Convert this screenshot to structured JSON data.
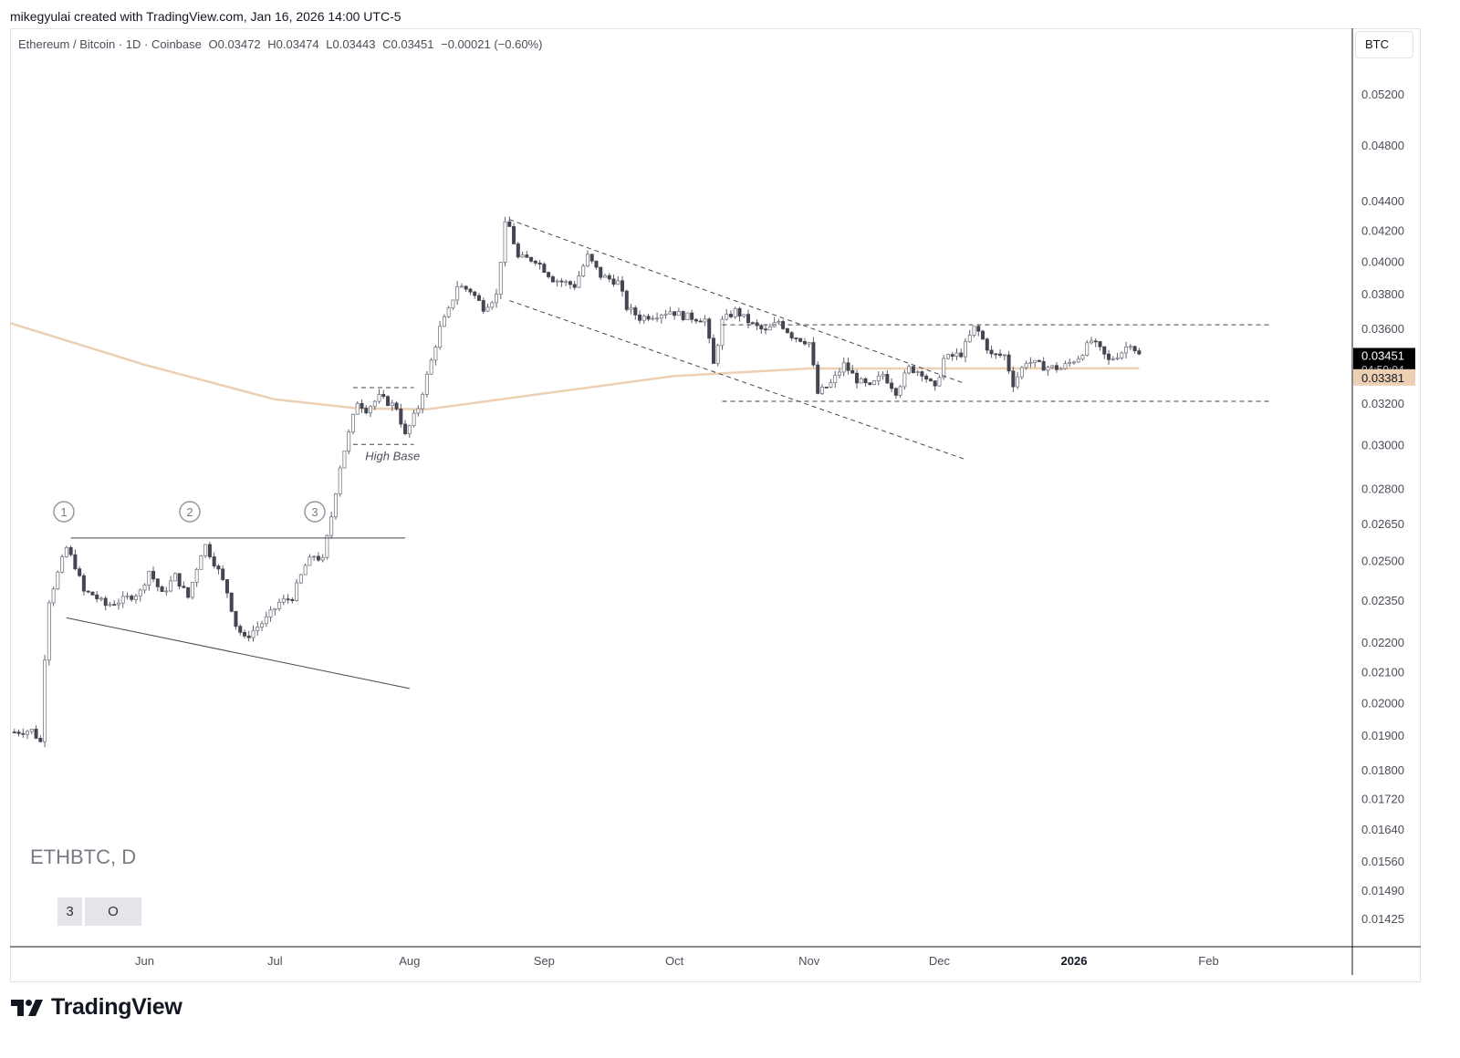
{
  "attribution": "mikegyulai created with TradingView.com, Jan 16, 2026 14:00 UTC-5",
  "legend": {
    "symbol": "Ethereum / Bitcoin · 1D · Coinbase",
    "open": "O0.03472",
    "high": "H0.03474",
    "low": "L0.03443",
    "close": "C0.03451",
    "change": "−0.00021 (−0.60%)"
  },
  "price_scale_label": "BTC",
  "watermark": {
    "title": "ETHBTC, D",
    "box1": "3",
    "box2": "O"
  },
  "logo_text": "TradingView",
  "colors": {
    "up_candle": "#ffffff",
    "up_border": "#787b86",
    "down_candle": "#434651",
    "ma_line": "#edcfb4",
    "last_price_bg": "#000000",
    "ma_badge_bg": "#edcfb4"
  },
  "chart_data": {
    "type": "candlestick",
    "title": "",
    "scale": "log",
    "ylim": [
      0.01395,
      0.0536
    ],
    "y_ticks": [
      "0.05200",
      "0.04800",
      "0.04400",
      "0.04200",
      "0.04000",
      "0.03800",
      "0.03600",
      "0.03200",
      "0.03000",
      "0.02800",
      "0.02650",
      "0.02500",
      "0.02350",
      "0.02200",
      "0.02100",
      "0.02000",
      "0.01900",
      "0.01800",
      "0.01720",
      "0.01640",
      "0.01560",
      "0.01490",
      "0.01425"
    ],
    "x_ticks": [
      {
        "label": "Jun",
        "date": "2025-06-01",
        "bold": false
      },
      {
        "label": "Jul",
        "date": "2025-07-01",
        "bold": false
      },
      {
        "label": "Aug",
        "date": "2025-08-01",
        "bold": false
      },
      {
        "label": "Sep",
        "date": "2025-09-01",
        "bold": false
      },
      {
        "label": "Oct",
        "date": "2025-10-01",
        "bold": false
      },
      {
        "label": "Nov",
        "date": "2025-11-01",
        "bold": false
      },
      {
        "label": "Dec",
        "date": "2025-12-01",
        "bold": false
      },
      {
        "label": "2026",
        "date": "2026-01-01",
        "bold": true
      },
      {
        "label": "Feb",
        "date": "2026-02-01",
        "bold": false
      }
    ],
    "close_path": [
      [
        "2025-05-02",
        0.0191
      ],
      [
        "2025-05-06",
        0.01915
      ],
      [
        "2025-05-08",
        0.0188
      ],
      [
        "2025-05-09",
        0.0215
      ],
      [
        "2025-05-10",
        0.0235
      ],
      [
        "2025-05-12",
        0.0245
      ],
      [
        "2025-05-14",
        0.0255
      ],
      [
        "2025-05-16",
        0.0248
      ],
      [
        "2025-05-18",
        0.0238
      ],
      [
        "2025-05-20",
        0.0237
      ],
      [
        "2025-05-23",
        0.0233
      ],
      [
        "2025-05-27",
        0.0235
      ],
      [
        "2025-05-31",
        0.0238
      ],
      [
        "2025-06-02",
        0.0246
      ],
      [
        "2025-06-05",
        0.0237
      ],
      [
        "2025-06-08",
        0.0244
      ],
      [
        "2025-06-11",
        0.0236
      ],
      [
        "2025-06-14",
        0.0253
      ],
      [
        "2025-06-15",
        0.0256
      ],
      [
        "2025-06-18",
        0.0246
      ],
      [
        "2025-06-20",
        0.0238
      ],
      [
        "2025-06-22",
        0.0226
      ],
      [
        "2025-06-24",
        0.0221
      ],
      [
        "2025-06-26",
        0.0224
      ],
      [
        "2025-06-29",
        0.0228
      ],
      [
        "2025-07-02",
        0.0234
      ],
      [
        "2025-07-05",
        0.0236
      ],
      [
        "2025-07-08",
        0.0248
      ],
      [
        "2025-07-10",
        0.0252
      ],
      [
        "2025-07-12",
        0.025
      ],
      [
        "2025-07-14",
        0.0268
      ],
      [
        "2025-07-16",
        0.029
      ],
      [
        "2025-07-18",
        0.0305
      ],
      [
        "2025-07-20",
        0.0321
      ],
      [
        "2025-07-22",
        0.0317
      ],
      [
        "2025-07-25",
        0.0323
      ],
      [
        "2025-07-29",
        0.0318
      ],
      [
        "2025-07-31",
        0.0304
      ],
      [
        "2025-08-03",
        0.0318
      ],
      [
        "2025-08-06",
        0.0342
      ],
      [
        "2025-08-08",
        0.036
      ],
      [
        "2025-08-10",
        0.037
      ],
      [
        "2025-08-12",
        0.0385
      ],
      [
        "2025-08-15",
        0.0382
      ],
      [
        "2025-08-18",
        0.0372
      ],
      [
        "2025-08-21",
        0.0379
      ],
      [
        "2025-08-23",
        0.0423
      ],
      [
        "2025-08-24",
        0.0422
      ],
      [
        "2025-08-26",
        0.0402
      ],
      [
        "2025-08-30",
        0.0401
      ],
      [
        "2025-09-03",
        0.0389
      ],
      [
        "2025-09-08",
        0.0385
      ],
      [
        "2025-09-11",
        0.0403
      ],
      [
        "2025-09-14",
        0.0391
      ],
      [
        "2025-09-18",
        0.0387
      ],
      [
        "2025-09-20",
        0.0372
      ],
      [
        "2025-09-23",
        0.0366
      ],
      [
        "2025-09-27",
        0.0368
      ],
      [
        "2025-09-30",
        0.037
      ],
      [
        "2025-10-03",
        0.0367
      ],
      [
        "2025-10-08",
        0.0365
      ],
      [
        "2025-10-10",
        0.034
      ],
      [
        "2025-10-12",
        0.0364
      ],
      [
        "2025-10-15",
        0.037
      ],
      [
        "2025-10-19",
        0.0362
      ],
      [
        "2025-10-22",
        0.0358
      ],
      [
        "2025-10-25",
        0.0364
      ],
      [
        "2025-10-28",
        0.0356
      ],
      [
        "2025-11-01",
        0.0352
      ],
      [
        "2025-11-03",
        0.0325
      ],
      [
        "2025-11-06",
        0.033
      ],
      [
        "2025-11-09",
        0.034
      ],
      [
        "2025-11-12",
        0.0332
      ],
      [
        "2025-11-15",
        0.0328
      ],
      [
        "2025-11-18",
        0.0335
      ],
      [
        "2025-11-21",
        0.0326
      ],
      [
        "2025-11-24",
        0.0338
      ],
      [
        "2025-11-27",
        0.0336
      ],
      [
        "2025-11-30",
        0.0327
      ],
      [
        "2025-12-02",
        0.0343
      ],
      [
        "2025-12-06",
        0.0346
      ],
      [
        "2025-12-09",
        0.036
      ],
      [
        "2025-12-10",
        0.0358
      ],
      [
        "2025-12-13",
        0.0345
      ],
      [
        "2025-12-16",
        0.0345
      ],
      [
        "2025-12-18",
        0.033
      ],
      [
        "2025-12-21",
        0.0342
      ],
      [
        "2025-12-25",
        0.0339
      ],
      [
        "2025-12-29",
        0.0338
      ],
      [
        "2026-01-02",
        0.0344
      ],
      [
        "2026-01-05",
        0.0353
      ],
      [
        "2026-01-07",
        0.0348
      ],
      [
        "2026-01-09",
        0.0342
      ],
      [
        "2026-01-12",
        0.0347
      ],
      [
        "2026-01-14",
        0.0352
      ],
      [
        "2026-01-16",
        0.03451
      ]
    ],
    "moving_average": [
      [
        "2025-05-01",
        0.0363
      ],
      [
        "2025-06-01",
        0.034
      ],
      [
        "2025-07-01",
        0.0322
      ],
      [
        "2025-07-20",
        0.03175
      ],
      [
        "2025-08-05",
        0.0317
      ],
      [
        "2025-09-01",
        0.0325
      ],
      [
        "2025-10-01",
        0.0334
      ],
      [
        "2025-11-01",
        0.0338
      ],
      [
        "2025-12-01",
        0.0338
      ],
      [
        "2026-01-16",
        0.03381
      ]
    ],
    "last_price": {
      "value": 0.03451,
      "label": "0.03451",
      "countdown": "04:59:04"
    },
    "ma_value": {
      "value": 0.03381,
      "label": "0.03381"
    },
    "annotations": {
      "high_base_label": "High Base",
      "pivot_labels": [
        "1",
        "2",
        "3"
      ],
      "resistance_line": {
        "from": [
          "2025-05-15",
          0.0259
        ],
        "to": [
          "2025-07-31",
          0.0259
        ]
      },
      "support_line": {
        "from": [
          "2025-05-14",
          0.02285
        ],
        "to": [
          "2025-08-01",
          0.02045
        ]
      },
      "high_base_box": {
        "x0": "2025-07-19",
        "x1": "2025-08-02",
        "top": 0.0328,
        "bottom": 0.03
      },
      "channel_upper": {
        "from": [
          "2025-08-24",
          0.0427
        ],
        "to": [
          "2025-12-07",
          0.033
        ]
      },
      "channel_lower": {
        "from": [
          "2025-08-24",
          0.0376
        ],
        "to": [
          "2025-12-07",
          0.0293
        ]
      },
      "range_top": {
        "from": [
          "2025-10-12",
          0.0362
        ],
        "to": [
          "2026-02-15",
          0.0362
        ]
      },
      "range_bottom": {
        "from": [
          "2025-10-12",
          0.0321
        ],
        "to": [
          "2026-02-15",
          0.0321
        ]
      }
    }
  }
}
